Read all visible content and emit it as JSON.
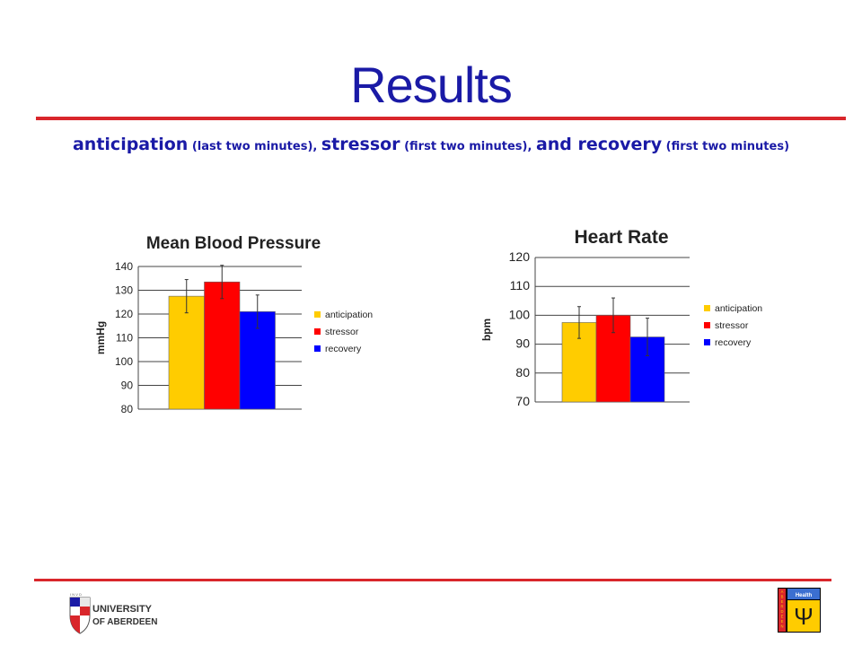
{
  "slide": {
    "title": "Results",
    "subtitle": [
      {
        "text": "anticipation",
        "style": "big"
      },
      {
        "text": " (last two minutes), ",
        "style": "small"
      },
      {
        "text": "stressor",
        "style": "big"
      },
      {
        "text": " (first two minutes), ",
        "style": "small"
      },
      {
        "text": "and recovery",
        "style": "big"
      },
      {
        "text": " (first two minutes)",
        "style": "small"
      }
    ],
    "accent_color": "#d9262b",
    "title_color": "#1a1aa6"
  },
  "chart_data": [
    {
      "type": "bar",
      "title": "Mean Blood Pressure",
      "ylabel": "mmHg",
      "xlabel": "",
      "ylim": [
        80,
        140
      ],
      "yticks": [
        80,
        90,
        100,
        110,
        120,
        130,
        140
      ],
      "grid": true,
      "legend_position": "right",
      "categories": [
        "anticipation",
        "stressor",
        "recovery"
      ],
      "values": [
        127.5,
        133.5,
        121
      ],
      "errors": [
        7,
        7,
        7
      ],
      "colors": [
        "#ffcc00",
        "#ff0000",
        "#0000ff"
      ]
    },
    {
      "type": "bar",
      "title": "Heart Rate",
      "ylabel": "bpm",
      "xlabel": "",
      "ylim": [
        70,
        120
      ],
      "yticks": [
        70,
        80,
        90,
        100,
        110,
        120
      ],
      "grid": true,
      "legend_position": "right",
      "categories": [
        "anticipation",
        "stressor",
        "recovery"
      ],
      "values": [
        97.5,
        100,
        92.5
      ],
      "errors": [
        5.5,
        6,
        6.5
      ],
      "colors": [
        "#ffcc00",
        "#ff0000",
        "#0000ff"
      ]
    }
  ],
  "logos": {
    "university": {
      "line1": "UNIVERSITY",
      "line2": "OF ABERDEEN"
    },
    "health": {
      "label": "Health",
      "side_text": "ABERDEEN",
      "symbol": "Ψ"
    }
  }
}
